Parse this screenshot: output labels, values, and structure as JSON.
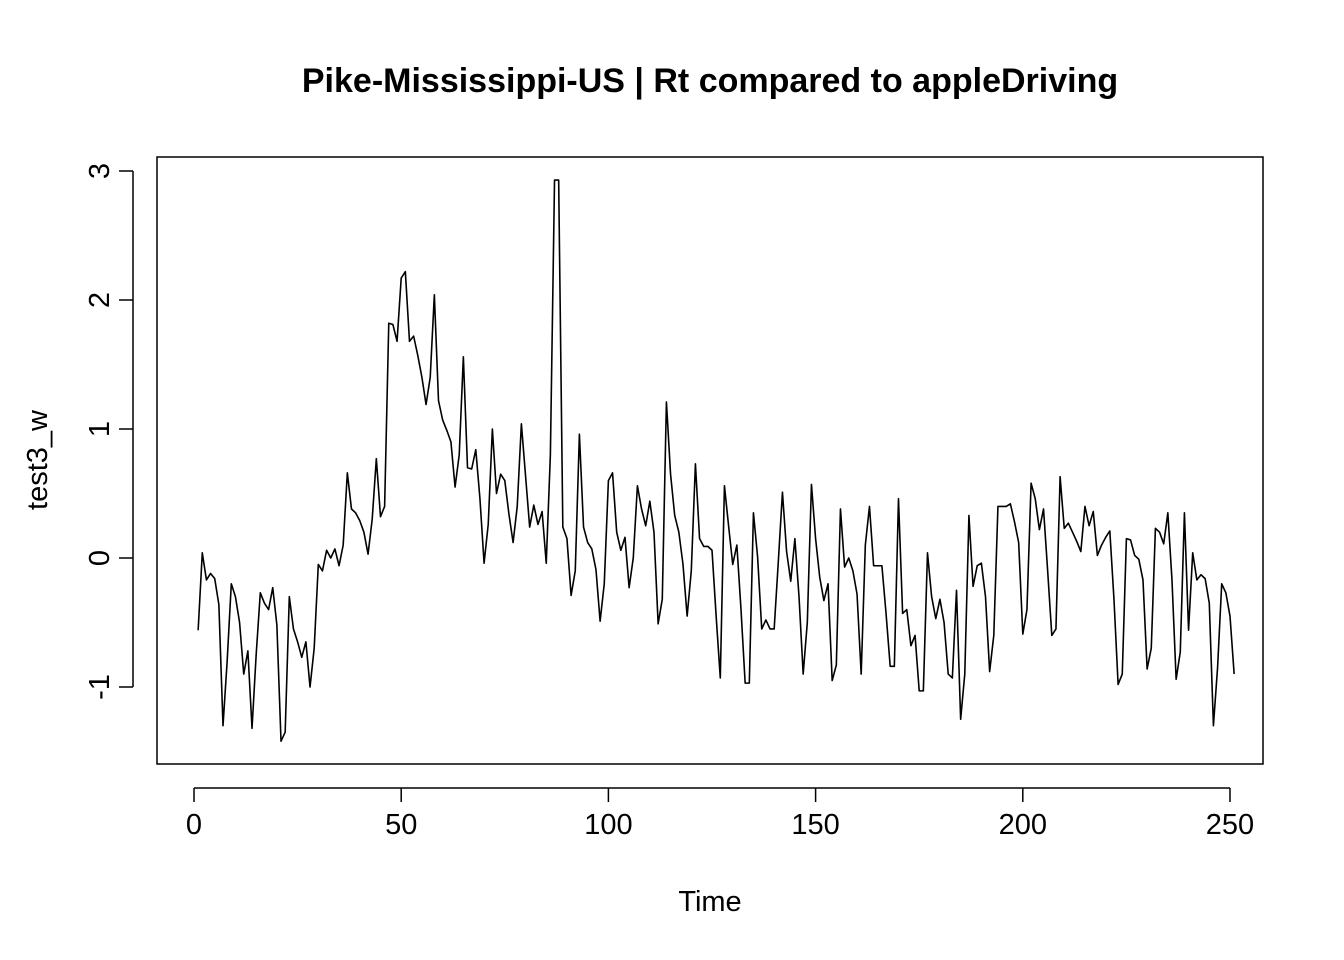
{
  "chart_data": {
    "type": "line",
    "title": "Pike-Mississippi-US | Rt compared to appleDriving",
    "xlabel": "Time",
    "ylabel": "test3_w",
    "xlim": [
      0,
      250
    ],
    "ylim": [
      -1.5,
      3
    ],
    "x_ticks": [
      0,
      50,
      100,
      150,
      200,
      250
    ],
    "y_ticks": [
      -1,
      0,
      1,
      2,
      3
    ],
    "x_tick_labels": [
      "0",
      "50",
      "100",
      "150",
      "200",
      "250"
    ],
    "y_tick_labels": [
      "-1",
      "0",
      "1",
      "2",
      "3"
    ],
    "grid": false,
    "series": [
      {
        "x_start": 1,
        "x_step": 1,
        "values": [
          -0.56,
          0.04,
          -0.17,
          -0.12,
          -0.16,
          -0.36,
          -1.3,
          -0.8,
          -0.2,
          -0.3,
          -0.5,
          -0.9,
          -0.72,
          -1.32,
          -0.75,
          -0.27,
          -0.35,
          -0.4,
          -0.23,
          -0.52,
          -1.42,
          -1.35,
          -0.3,
          -0.55,
          -0.65,
          -0.77,
          -0.65,
          -1.0,
          -0.7,
          -0.05,
          -0.1,
          0.06,
          0.0,
          0.07,
          -0.06,
          0.1,
          0.66,
          0.38,
          0.35,
          0.29,
          0.2,
          0.03,
          0.3,
          0.77,
          0.32,
          0.4,
          1.82,
          1.81,
          1.68,
          2.17,
          2.22,
          1.68,
          1.72,
          1.57,
          1.4,
          1.19,
          1.4,
          2.04,
          1.22,
          1.07,
          0.99,
          0.9,
          0.55,
          0.8,
          1.56,
          0.7,
          0.69,
          0.84,
          0.46,
          -0.04,
          0.26,
          1.0,
          0.5,
          0.65,
          0.6,
          0.34,
          0.12,
          0.4,
          1.04,
          0.64,
          0.24,
          0.41,
          0.26,
          0.36,
          -0.04,
          0.8,
          2.93,
          2.93,
          0.24,
          0.15,
          -0.29,
          -0.1,
          0.96,
          0.24,
          0.12,
          0.07,
          -0.09,
          -0.49,
          -0.2,
          0.6,
          0.66,
          0.2,
          0.06,
          0.16,
          -0.23,
          0.0,
          0.56,
          0.38,
          0.25,
          0.44,
          0.2,
          -0.51,
          -0.32,
          1.21,
          0.65,
          0.33,
          0.2,
          -0.05,
          -0.45,
          -0.1,
          0.73,
          0.15,
          0.09,
          0.09,
          0.06,
          -0.45,
          -0.93,
          0.56,
          0.25,
          -0.05,
          0.1,
          -0.4,
          -0.97,
          -0.97,
          0.35,
          0.01,
          -0.55,
          -0.48,
          -0.55,
          -0.55,
          -0.03,
          0.51,
          0.05,
          -0.18,
          0.15,
          -0.3,
          -0.9,
          -0.5,
          0.57,
          0.15,
          -0.15,
          -0.33,
          -0.2,
          -0.95,
          -0.83,
          0.38,
          -0.07,
          0.0,
          -0.1,
          -0.28,
          -0.9,
          0.1,
          0.4,
          -0.06,
          -0.06,
          -0.06,
          -0.43,
          -0.84,
          -0.84,
          0.46,
          -0.43,
          -0.4,
          -0.68,
          -0.6,
          -1.03,
          -1.03,
          0.04,
          -0.3,
          -0.47,
          -0.32,
          -0.5,
          -0.9,
          -0.93,
          -0.25,
          -1.25,
          -0.9,
          0.33,
          -0.22,
          -0.06,
          -0.04,
          -0.3,
          -0.88,
          -0.6,
          0.4,
          0.4,
          0.4,
          0.42,
          0.28,
          0.12,
          -0.59,
          -0.4,
          0.58,
          0.46,
          0.22,
          0.38,
          -0.1,
          -0.6,
          -0.55,
          0.63,
          0.23,
          0.27,
          0.2,
          0.13,
          0.05,
          0.4,
          0.25,
          0.36,
          0.02,
          0.1,
          0.16,
          0.21,
          -0.32,
          -0.98,
          -0.9,
          0.15,
          0.14,
          0.02,
          -0.01,
          -0.17,
          -0.86,
          -0.7,
          0.23,
          0.2,
          0.11,
          0.35,
          -0.17,
          -0.94,
          -0.73,
          0.35,
          -0.56,
          0.04,
          -0.17,
          -0.13,
          -0.16,
          -0.35,
          -1.3,
          -0.85,
          -0.2,
          -0.27,
          -0.45,
          -0.9
        ]
      }
    ]
  }
}
